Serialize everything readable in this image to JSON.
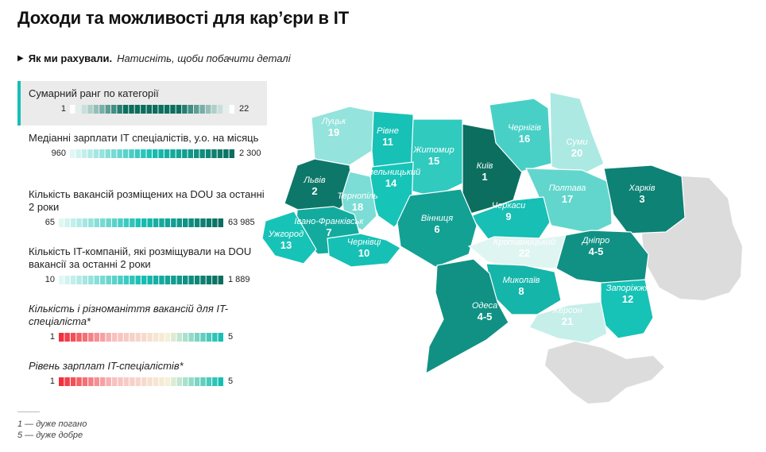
{
  "title": "Доходи та можливості для кар’єри в IT",
  "details": {
    "bold": "Як ми рахували.",
    "hint": "Натисніть, щоби побачити деталі"
  },
  "legend": [
    {
      "label": "Сумарний ранг по категорії",
      "min": "1",
      "max": "22",
      "active": true,
      "italic": false,
      "colors": [
        "#ffffff",
        "#0b6e5e",
        "#0b6e5e",
        "#ffffff"
      ]
    },
    {
      "label": "Медіанні зарплати IT спеціалістів, у.о. на місяць",
      "min": "960",
      "max": "2 300",
      "active": false,
      "italic": false,
      "colors": [
        "#e0f7f4",
        "#17bfb4",
        "#0b6e5e"
      ]
    },
    {
      "label": "Кількість вакансій розміщених на DOU за останні 2 роки",
      "min": "65",
      "max": "63 985",
      "active": false,
      "italic": false,
      "colors": [
        "#e0f7f4",
        "#17bfb4",
        "#0b6e5e"
      ]
    },
    {
      "label": "Кількість IT-компаній, які розміщували на DOU вакансії за останні 2 роки",
      "min": "10",
      "max": "1 889",
      "active": false,
      "italic": false,
      "colors": [
        "#e0f7f4",
        "#17bfb4",
        "#0b6e5e"
      ]
    },
    {
      "label": "Кількість і різноманіття вакансій для IT-спеціаліста*",
      "min": "1",
      "max": "5",
      "active": false,
      "italic": true,
      "colors": [
        "#f0303c",
        "#f8c0c0",
        "#f5f0d8",
        "#17bfb4"
      ]
    },
    {
      "label": "Рівень зарплат IT-спеціалістів*",
      "min": "1",
      "max": "5",
      "active": false,
      "italic": true,
      "colors": [
        "#f0303c",
        "#f8c0c0",
        "#f5f0d8",
        "#17bfb4"
      ]
    }
  ],
  "notes": [
    "1 — дуже погано",
    "5 — дуже добре"
  ],
  "colors": {
    "rank_dark": "#0b6e5e",
    "rank_mid": "#17bfb4",
    "rank_light": "#d8f3ef",
    "occupied": "#dcdcdc"
  },
  "regions": [
    {
      "name": "Луцьк",
      "value": "19",
      "rank": 19
    },
    {
      "name": "Рівне",
      "value": "11",
      "rank": 11
    },
    {
      "name": "Житомир",
      "value": "15",
      "rank": 15
    },
    {
      "name": "Київ",
      "value": "1",
      "rank": 1
    },
    {
      "name": "Чернігів",
      "value": "16",
      "rank": 16
    },
    {
      "name": "Суми",
      "value": "20",
      "rank": 20
    },
    {
      "name": "Львів",
      "value": "2",
      "rank": 2
    },
    {
      "name": "Хмельницький",
      "value": "14",
      "rank": 14
    },
    {
      "name": "Тернопіль",
      "value": "18",
      "rank": 18
    },
    {
      "name": "Полтава",
      "value": "17",
      "rank": 17
    },
    {
      "name": "Харків",
      "value": "3",
      "rank": 3
    },
    {
      "name": "Черкаси",
      "value": "9",
      "rank": 9
    },
    {
      "name": "Івано-Франківськ",
      "value": "7",
      "rank": 7
    },
    {
      "name": "Вінниця",
      "value": "6",
      "rank": 6
    },
    {
      "name": "Ужгород",
      "value": "13",
      "rank": 13
    },
    {
      "name": "Чернівці",
      "value": "10",
      "rank": 10
    },
    {
      "name": "Кропивницький",
      "value": "22",
      "rank": 22
    },
    {
      "name": "Дніпро",
      "value": "4-5",
      "rank": 4.5
    },
    {
      "name": "Миколаїв",
      "value": "8",
      "rank": 8
    },
    {
      "name": "Запоріжжя",
      "value": "12",
      "rank": 12
    },
    {
      "name": "Одеса",
      "value": "4-5",
      "rank": 4.5
    },
    {
      "name": "Херсон",
      "value": "21",
      "rank": 21
    }
  ]
}
